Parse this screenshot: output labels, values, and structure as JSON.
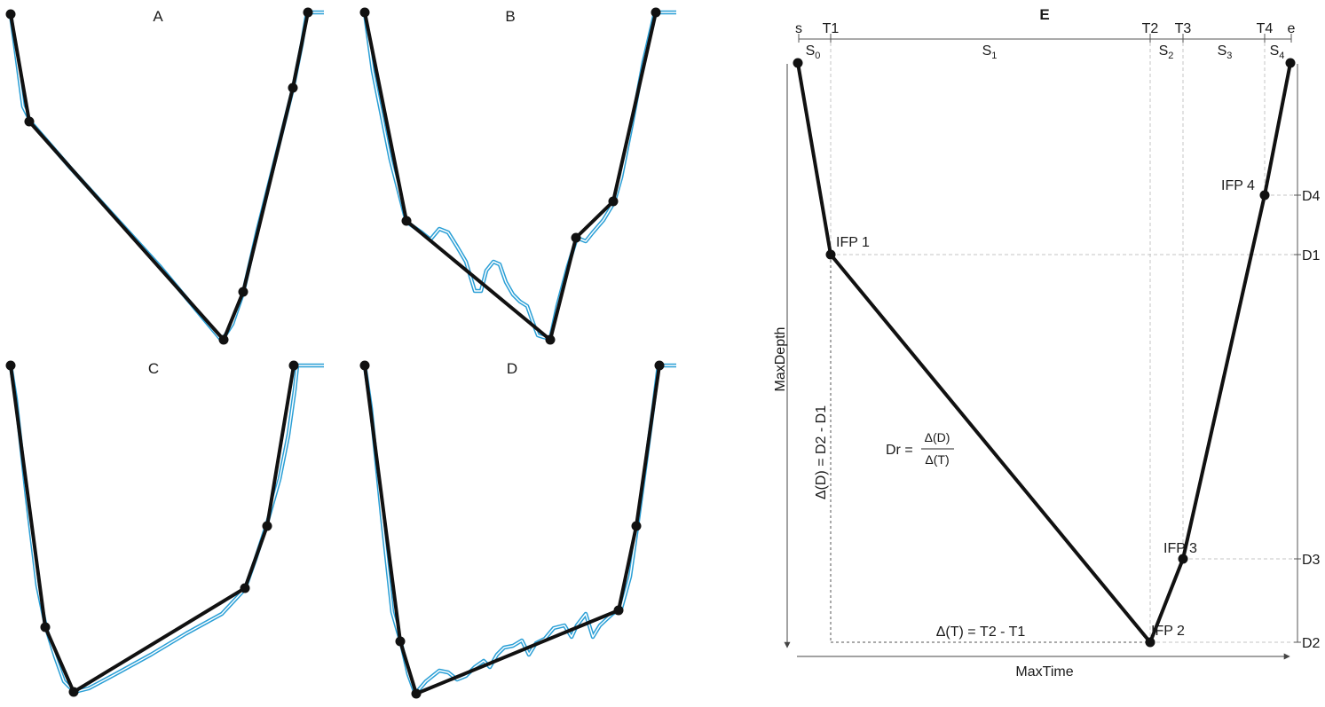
{
  "colors": {
    "fit": "#111111",
    "dive": "#2a9fd6",
    "guide": "#bbbbbb",
    "axis": "#444444"
  },
  "small_panels": [
    {
      "label": "A"
    },
    {
      "label": "B"
    },
    {
      "label": "C"
    },
    {
      "label": "D"
    }
  ],
  "panel_e": {
    "label": "E",
    "top_ticks": [
      "s",
      "T1",
      "T2",
      "T3",
      "T4",
      "e"
    ],
    "segments": [
      {
        "base": "S",
        "sub": "0"
      },
      {
        "base": "S",
        "sub": "1"
      },
      {
        "base": "S",
        "sub": "2"
      },
      {
        "base": "S",
        "sub": "3"
      },
      {
        "base": "S",
        "sub": "4"
      }
    ],
    "points": [
      "IFP 1",
      "IFP 2",
      "IFP 3",
      "IFP 4"
    ],
    "depth_labels": [
      "D4",
      "D1",
      "D3",
      "D2"
    ],
    "axis_x": "MaxTime",
    "axis_y": "MaxDepth",
    "delta_d": "Δ(D) = D2 - D1",
    "delta_t": "Δ(T) = T2 - T1",
    "dr_lhs": "Dr =",
    "dr_num": "Δ(D)",
    "dr_den": "Δ(T)"
  }
}
